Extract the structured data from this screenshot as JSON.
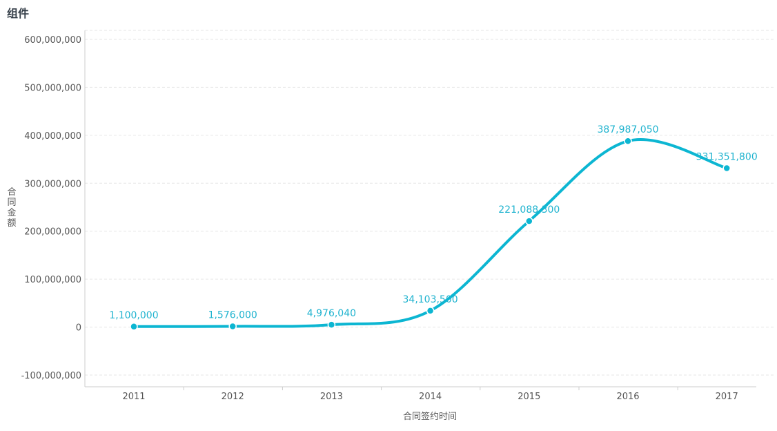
{
  "widget": {
    "title": "组件"
  },
  "colors": {
    "series": "#0cb6d2",
    "label": "#1fb3cf",
    "grid": "#e6e6e6",
    "axis": "#cccccc"
  },
  "chart_data": {
    "type": "line",
    "smooth": true,
    "x": [
      "2011",
      "2012",
      "2013",
      "2014",
      "2015",
      "2016",
      "2017"
    ],
    "series": [
      {
        "values": [
          1100000,
          1576000,
          4976040,
          34103500,
          221088300,
          387987050,
          331351800
        ],
        "labels": [
          "1,100,000",
          "1,576,000",
          "4,976,040",
          "34,103,500",
          "221,088,300",
          "387,987,050",
          "331,351,800"
        ]
      }
    ],
    "xlabel": "合同签约时间",
    "ylabel": "合同金额",
    "ylim": [
      -100000000,
      600000000
    ],
    "yticks": [
      -100000000,
      0,
      100000000,
      200000000,
      300000000,
      400000000,
      500000000,
      600000000
    ],
    "ytick_labels": [
      "-100,000,000",
      "0",
      "100,000,000",
      "200,000,000",
      "300,000,000",
      "400,000,000",
      "500,000,000",
      "600,000,000"
    ],
    "grid": true,
    "legend": "none"
  }
}
